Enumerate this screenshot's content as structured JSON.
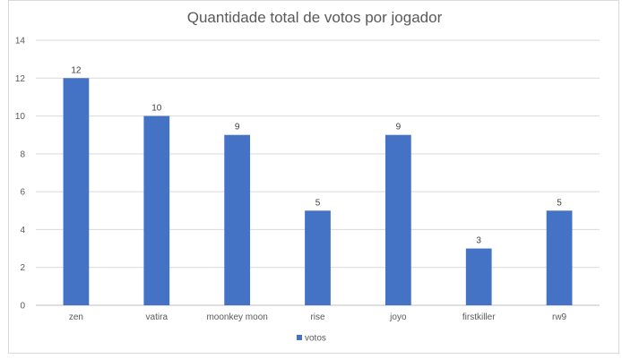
{
  "chart_data": {
    "type": "bar",
    "title": "Quantidade total de votos por jogador",
    "categories": [
      "zen",
      "vatira",
      "moonkey moon",
      "rise",
      "joyo",
      "firstkiller",
      "rw9"
    ],
    "series": [
      {
        "name": "votos",
        "values": [
          12,
          10,
          9,
          5,
          9,
          3,
          5
        ],
        "color": "#4472C4"
      }
    ],
    "ylim": [
      0,
      14
    ],
    "yticks": [
      0,
      2,
      4,
      6,
      8,
      10,
      12,
      14
    ],
    "xlabel": "",
    "ylabel": "",
    "grid": true,
    "legend_position": "bottom",
    "data_labels": true
  }
}
